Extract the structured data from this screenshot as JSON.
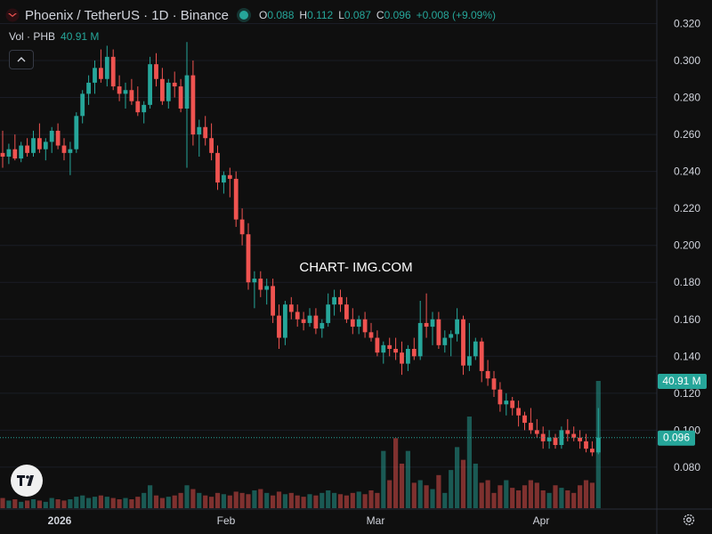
{
  "header": {
    "title": "Phoenix / TetherUS · 1D · Binance",
    "o_label": "O",
    "o_value": "0.088",
    "h_label": "H",
    "h_value": "0.112",
    "l_label": "L",
    "l_value": "0.087",
    "c_label": "C",
    "c_value": "0.096",
    "change": "+0.008 (+9.09%)"
  },
  "volume": {
    "label": "Vol · PHB",
    "value": "40.91 M"
  },
  "watermark": "CHART- IMG.COM",
  "icons": {
    "collapse": "chevron-up-icon",
    "logo": "tradingview-logo-icon",
    "settings": "gear-icon",
    "symbol": "phoenix-logo-icon"
  },
  "colors": {
    "up": "#26a69a",
    "down": "#ef5350",
    "background": "#0f0f0f",
    "grid": "#1e222d",
    "text": "#d1d4dc"
  },
  "chart_data": {
    "type": "candlestick",
    "title": "Phoenix / TetherUS · 1D · Binance",
    "y_ticks": [
      "0.320",
      "0.300",
      "0.280",
      "0.260",
      "0.240",
      "0.220",
      "0.200",
      "0.180",
      "0.160",
      "0.140",
      "0.120",
      "0.100",
      "0.080"
    ],
    "x_ticks": [
      "2026",
      "Feb",
      "Mar",
      "Apr"
    ],
    "ylim": [
      0.066,
      0.326
    ],
    "last_price_label": "0.096",
    "last_volume_label": "40.91 M",
    "candles_ohlc": [
      [
        0.25,
        0.262,
        0.242,
        0.248
      ],
      [
        0.248,
        0.255,
        0.244,
        0.252
      ],
      [
        0.252,
        0.26,
        0.246,
        0.247
      ],
      [
        0.247,
        0.256,
        0.245,
        0.254
      ],
      [
        0.254,
        0.258,
        0.248,
        0.25
      ],
      [
        0.25,
        0.262,
        0.248,
        0.258
      ],
      [
        0.258,
        0.266,
        0.25,
        0.252
      ],
      [
        0.252,
        0.258,
        0.246,
        0.256
      ],
      [
        0.256,
        0.264,
        0.25,
        0.262
      ],
      [
        0.262,
        0.266,
        0.252,
        0.254
      ],
      [
        0.254,
        0.258,
        0.246,
        0.25
      ],
      [
        0.25,
        0.256,
        0.238,
        0.252
      ],
      [
        0.252,
        0.272,
        0.25,
        0.27
      ],
      [
        0.27,
        0.284,
        0.266,
        0.282
      ],
      [
        0.282,
        0.292,
        0.276,
        0.288
      ],
      [
        0.288,
        0.3,
        0.282,
        0.296
      ],
      [
        0.296,
        0.306,
        0.288,
        0.29
      ],
      [
        0.29,
        0.308,
        0.286,
        0.302
      ],
      [
        0.302,
        0.306,
        0.284,
        0.286
      ],
      [
        0.286,
        0.292,
        0.278,
        0.282
      ],
      [
        0.282,
        0.288,
        0.274,
        0.284
      ],
      [
        0.284,
        0.29,
        0.276,
        0.278
      ],
      [
        0.278,
        0.286,
        0.27,
        0.272
      ],
      [
        0.272,
        0.278,
        0.266,
        0.276
      ],
      [
        0.276,
        0.302,
        0.274,
        0.298
      ],
      [
        0.298,
        0.304,
        0.286,
        0.29
      ],
      [
        0.29,
        0.296,
        0.276,
        0.278
      ],
      [
        0.278,
        0.29,
        0.274,
        0.288
      ],
      [
        0.288,
        0.294,
        0.28,
        0.286
      ],
      [
        0.286,
        0.29,
        0.272,
        0.274
      ],
      [
        0.274,
        0.31,
        0.242,
        0.292
      ],
      [
        0.292,
        0.3,
        0.254,
        0.26
      ],
      [
        0.26,
        0.268,
        0.248,
        0.264
      ],
      [
        0.264,
        0.27,
        0.254,
        0.258
      ],
      [
        0.258,
        0.266,
        0.246,
        0.25
      ],
      [
        0.25,
        0.254,
        0.23,
        0.234
      ],
      [
        0.234,
        0.24,
        0.228,
        0.238
      ],
      [
        0.238,
        0.242,
        0.226,
        0.236
      ],
      [
        0.236,
        0.24,
        0.21,
        0.214
      ],
      [
        0.214,
        0.22,
        0.2,
        0.206
      ],
      [
        0.206,
        0.212,
        0.176,
        0.18
      ],
      [
        0.18,
        0.186,
        0.166,
        0.182
      ],
      [
        0.182,
        0.186,
        0.172,
        0.176
      ],
      [
        0.176,
        0.182,
        0.168,
        0.178
      ],
      [
        0.178,
        0.182,
        0.158,
        0.162
      ],
      [
        0.162,
        0.168,
        0.144,
        0.15
      ],
      [
        0.15,
        0.17,
        0.146,
        0.168
      ],
      [
        0.168,
        0.172,
        0.16,
        0.164
      ],
      [
        0.164,
        0.168,
        0.156,
        0.16
      ],
      [
        0.16,
        0.164,
        0.154,
        0.158
      ],
      [
        0.158,
        0.166,
        0.156,
        0.162
      ],
      [
        0.162,
        0.166,
        0.152,
        0.155
      ],
      [
        0.155,
        0.16,
        0.15,
        0.158
      ],
      [
        0.158,
        0.174,
        0.156,
        0.168
      ],
      [
        0.168,
        0.176,
        0.162,
        0.172
      ],
      [
        0.172,
        0.176,
        0.164,
        0.168
      ],
      [
        0.168,
        0.172,
        0.158,
        0.16
      ],
      [
        0.16,
        0.166,
        0.152,
        0.156
      ],
      [
        0.156,
        0.162,
        0.152,
        0.16
      ],
      [
        0.16,
        0.164,
        0.15,
        0.153
      ],
      [
        0.153,
        0.158,
        0.148,
        0.15
      ],
      [
        0.15,
        0.154,
        0.14,
        0.142
      ],
      [
        0.142,
        0.148,
        0.136,
        0.146
      ],
      [
        0.146,
        0.15,
        0.14,
        0.144
      ],
      [
        0.144,
        0.15,
        0.138,
        0.142
      ],
      [
        0.142,
        0.148,
        0.13,
        0.136
      ],
      [
        0.136,
        0.146,
        0.132,
        0.144
      ],
      [
        0.144,
        0.15,
        0.138,
        0.14
      ],
      [
        0.14,
        0.17,
        0.138,
        0.158
      ],
      [
        0.158,
        0.174,
        0.15,
        0.156
      ],
      [
        0.156,
        0.164,
        0.146,
        0.16
      ],
      [
        0.16,
        0.164,
        0.144,
        0.146
      ],
      [
        0.146,
        0.154,
        0.142,
        0.15
      ],
      [
        0.15,
        0.154,
        0.14,
        0.152
      ],
      [
        0.152,
        0.166,
        0.148,
        0.16
      ],
      [
        0.16,
        0.162,
        0.13,
        0.135
      ],
      [
        0.135,
        0.158,
        0.132,
        0.14
      ],
      [
        0.14,
        0.15,
        0.138,
        0.148
      ],
      [
        0.148,
        0.15,
        0.126,
        0.132
      ],
      [
        0.132,
        0.138,
        0.124,
        0.128
      ],
      [
        0.128,
        0.132,
        0.118,
        0.122
      ],
      [
        0.122,
        0.126,
        0.11,
        0.114
      ],
      [
        0.114,
        0.12,
        0.108,
        0.116
      ],
      [
        0.116,
        0.118,
        0.108,
        0.112
      ],
      [
        0.112,
        0.116,
        0.102,
        0.108
      ],
      [
        0.108,
        0.11,
        0.1,
        0.104
      ],
      [
        0.104,
        0.112,
        0.098,
        0.1
      ],
      [
        0.1,
        0.106,
        0.096,
        0.098
      ],
      [
        0.098,
        0.102,
        0.09,
        0.094
      ],
      [
        0.094,
        0.1,
        0.09,
        0.096
      ],
      [
        0.096,
        0.098,
        0.09,
        0.092
      ],
      [
        0.092,
        0.102,
        0.09,
        0.1
      ],
      [
        0.1,
        0.106,
        0.094,
        0.098
      ],
      [
        0.098,
        0.102,
        0.094,
        0.096
      ],
      [
        0.096,
        0.1,
        0.09,
        0.094
      ],
      [
        0.094,
        0.098,
        0.088,
        0.09
      ],
      [
        0.09,
        0.094,
        0.086,
        0.088
      ],
      [
        0.088,
        0.112,
        0.087,
        0.096
      ]
    ],
    "volume_relative": [
      0.08,
      0.06,
      0.07,
      0.05,
      0.06,
      0.07,
      0.06,
      0.05,
      0.08,
      0.07,
      0.06,
      0.07,
      0.09,
      0.1,
      0.08,
      0.09,
      0.1,
      0.09,
      0.08,
      0.07,
      0.08,
      0.07,
      0.09,
      0.12,
      0.18,
      0.1,
      0.08,
      0.09,
      0.1,
      0.12,
      0.18,
      0.15,
      0.12,
      0.1,
      0.09,
      0.12,
      0.11,
      0.1,
      0.13,
      0.12,
      0.11,
      0.14,
      0.15,
      0.12,
      0.1,
      0.13,
      0.11,
      0.12,
      0.1,
      0.09,
      0.11,
      0.1,
      0.12,
      0.14,
      0.12,
      0.11,
      0.1,
      0.12,
      0.13,
      0.11,
      0.14,
      0.12,
      0.45,
      0.22,
      0.55,
      0.35,
      0.45,
      0.2,
      0.22,
      0.18,
      0.15,
      0.26,
      0.12,
      0.3,
      0.48,
      0.38,
      0.72,
      0.35,
      0.2,
      0.22,
      0.12,
      0.18,
      0.22,
      0.16,
      0.14,
      0.18,
      0.22,
      0.2,
      0.14,
      0.12,
      0.18,
      0.16,
      0.14,
      0.12,
      0.18,
      0.22,
      0.2,
      1.0
    ]
  }
}
